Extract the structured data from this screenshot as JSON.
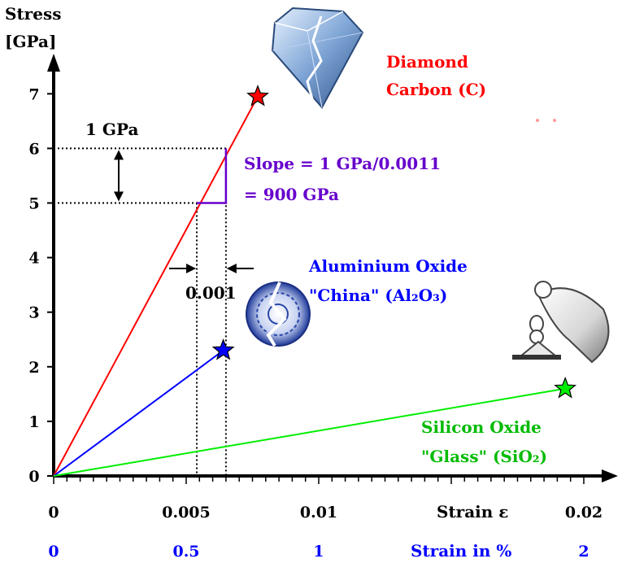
{
  "chart_data": {
    "type": "line",
    "y_axis": {
      "label_line1": "Stress",
      "label_line2": "[GPa]",
      "range": [
        0,
        7.6
      ],
      "ticks": [
        "0",
        "1",
        "2",
        "3",
        "4",
        "5",
        "6",
        "7"
      ]
    },
    "x_axis": {
      "label": "Strain ε",
      "range": [
        0,
        0.0205
      ],
      "ticks": [
        {
          "value": 0,
          "label": "0"
        },
        {
          "value": 0.005,
          "label": "0.005"
        },
        {
          "value": 0.01,
          "label": "0.01"
        },
        {
          "value": 0.02,
          "label": "0.02"
        }
      ]
    },
    "secondary_x_axis": {
      "label": "Strain in %",
      "ticks": [
        {
          "value": 0,
          "label": "0"
        },
        {
          "value": 0.005,
          "label": "0.5"
        },
        {
          "value": 0.01,
          "label": "1"
        },
        {
          "value": 0.02,
          "label": "2"
        }
      ],
      "color": "#0000ff"
    },
    "series": [
      {
        "name_line1": "Diamond",
        "name_line2": "Carbon (C)",
        "color": "#ff0000",
        "points": [
          [
            0,
            0
          ],
          [
            0.0077,
            6.95
          ]
        ],
        "end_marker": "star"
      },
      {
        "name_line1": "Aluminium Oxide",
        "name_line2": "\"China\" (Al₂O₃)",
        "color": "#0000ff",
        "points": [
          [
            0,
            0
          ],
          [
            0.0064,
            2.3
          ]
        ],
        "end_marker": "star"
      },
      {
        "name_line1": "Silicon Oxide",
        "name_line2": "\"Glass\" (SiO₂)",
        "color": "#00ee00",
        "points": [
          [
            0,
            0
          ],
          [
            0.0193,
            1.6
          ]
        ],
        "end_marker": "star"
      }
    ],
    "annotations": {
      "stress_step": {
        "label": "1 GPa",
        "from": 5,
        "to": 6
      },
      "strain_step": {
        "label": "0.001",
        "from": 0.0054,
        "to": 0.0065
      },
      "slope_text_line1": "Slope = 1 GPa/0.0011",
      "slope_text_line2": "= 900 GPa",
      "slope_color": "#6600cc"
    },
    "grid": false
  },
  "images": {
    "diamond": "diamond-icon",
    "china": "china-plate-icon",
    "glass": "glass-bottle-icon"
  }
}
